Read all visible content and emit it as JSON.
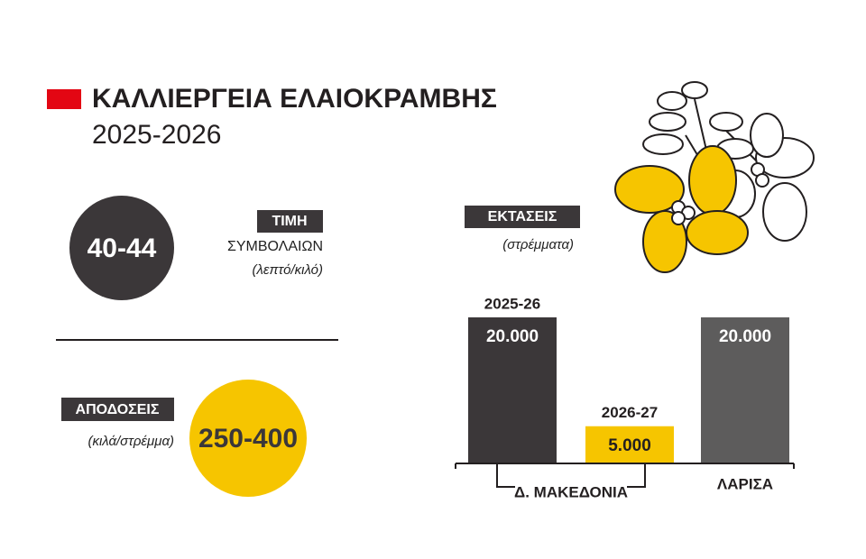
{
  "header": {
    "title": "ΚΑΛΛΙΕΡΓΕΙΑ ΕΛΑΙΟΚΡΑΜΒΗΣ",
    "subtitle": "2025-2026"
  },
  "price": {
    "value": "40-44",
    "label": "ΤΙΜΗ",
    "sublabel": "ΣΥΜΒΟΛΑΙΩΝ",
    "unit": "(λεπτό/κιλό)"
  },
  "yield": {
    "label": "ΑΠΟΔΟΣΕΙΣ",
    "unit": "(κιλά/στρέμμα)",
    "value": "250-400"
  },
  "chart_data": {
    "type": "bar",
    "title": "ΕΚΤΑΣΕΙΣ",
    "subtitle": "(στρέμματα)",
    "categories": [
      "Δ. ΜΑΚΕΔΟΝΙΑ",
      "ΛΑΡΙΣΑ"
    ],
    "ylim": [
      0,
      20000
    ],
    "series": [
      {
        "name": "2025-26",
        "color": "#3b3739",
        "values": [
          20000,
          null
        ],
        "value_labels": [
          "20.000",
          null
        ]
      },
      {
        "name": "2026-27",
        "color": "#f6c500",
        "values": [
          5000,
          null
        ],
        "value_labels": [
          "5.000",
          null
        ]
      },
      {
        "color": "#5d5c5c",
        "values": [
          null,
          20000
        ],
        "value_labels": [
          null,
          "20.000"
        ]
      }
    ]
  }
}
